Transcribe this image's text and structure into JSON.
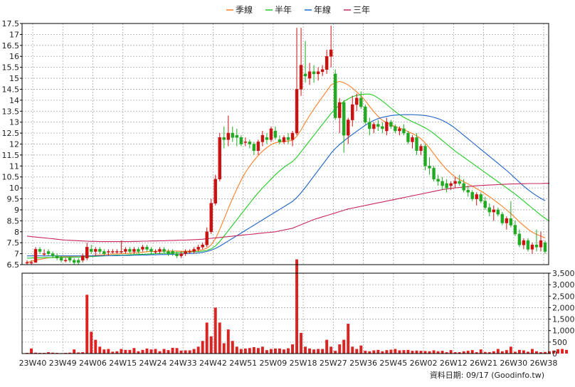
{
  "legend": [
    {
      "label": "季線",
      "color": "#ff7f27"
    },
    {
      "label": "半年",
      "color": "#22cc22"
    },
    {
      "label": "年線",
      "color": "#1e64c8"
    },
    {
      "label": "三年",
      "color": "#c8285a"
    }
  ],
  "footer": {
    "source": "資料日期: 09/17  (Goodinfo.tw)"
  },
  "colors": {
    "up": "#cc1111",
    "down": "#22aa22",
    "volume": "#dd2222",
    "grid": "#aaaaaa",
    "frame": "#000000"
  },
  "chart_data": {
    "type": "candlestick",
    "price_axis": {
      "min": 6.5,
      "max": 17.5,
      "ticks": [
        "6.5",
        "7",
        "7.5",
        "8",
        "8.5",
        "9",
        "9.5",
        "10",
        "10.5",
        "11",
        "11.5",
        "12",
        "12.5",
        "13",
        "13.5",
        "14",
        "14.5",
        "15",
        "15.5",
        "16",
        "16.5",
        "17",
        "17.5"
      ]
    },
    "volume_axis": {
      "min": 0,
      "max": 3500,
      "ticks": [
        "0",
        "500",
        "1,000",
        "1,500",
        "2,000",
        "2,500",
        "3,000",
        "3,500"
      ]
    },
    "x_labels": [
      "23W40",
      "23W49",
      "24W06",
      "24W15",
      "24W24",
      "24W33",
      "24W42",
      "24W51",
      "25W09",
      "25W18",
      "25W27",
      "25W36",
      "25W45",
      "26W02",
      "26W12",
      "26W21",
      "26W30",
      "26W38"
    ],
    "grid": true,
    "legend_position": "top-center",
    "candles": [
      [
        6.6,
        6.7,
        6.5,
        6.6
      ],
      [
        6.6,
        6.7,
        6.5,
        6.6
      ],
      [
        6.6,
        7.3,
        6.6,
        7.2
      ],
      [
        7.2,
        7.3,
        7.0,
        7.1
      ],
      [
        7.0,
        7.2,
        6.9,
        7.0
      ],
      [
        7.1,
        7.2,
        6.9,
        7.0
      ],
      [
        7.0,
        7.1,
        6.8,
        6.9
      ],
      [
        6.9,
        7.0,
        6.7,
        6.8
      ],
      [
        6.8,
        6.9,
        6.6,
        6.7
      ],
      [
        6.7,
        6.8,
        6.6,
        6.7
      ],
      [
        6.8,
        6.9,
        6.6,
        6.7
      ],
      [
        6.7,
        6.8,
        6.5,
        6.6
      ],
      [
        6.7,
        6.8,
        6.5,
        6.6
      ],
      [
        6.7,
        7.0,
        6.6,
        6.9
      ],
      [
        6.8,
        7.5,
        6.7,
        7.3
      ],
      [
        7.2,
        7.4,
        7.0,
        7.1
      ],
      [
        7.1,
        7.3,
        6.9,
        7.2
      ],
      [
        7.2,
        7.3,
        7.0,
        7.1
      ],
      [
        7.1,
        7.2,
        6.9,
        7.0
      ],
      [
        7.1,
        7.2,
        6.9,
        7.1
      ],
      [
        7.1,
        7.2,
        7.0,
        7.1
      ],
      [
        7.1,
        7.2,
        7.0,
        7.1
      ],
      [
        7.1,
        7.6,
        7.0,
        7.1
      ],
      [
        7.1,
        7.3,
        7.0,
        7.2
      ],
      [
        7.2,
        7.3,
        7.0,
        7.1
      ],
      [
        7.1,
        7.3,
        7.0,
        7.2
      ],
      [
        7.2,
        7.3,
        7.0,
        7.1
      ],
      [
        7.2,
        7.4,
        7.1,
        7.3
      ],
      [
        7.3,
        7.4,
        7.1,
        7.2
      ],
      [
        7.2,
        7.3,
        7.0,
        7.1
      ],
      [
        7.1,
        7.2,
        7.0,
        7.1
      ],
      [
        7.1,
        7.3,
        7.0,
        7.2
      ],
      [
        7.2,
        7.3,
        7.0,
        7.1
      ],
      [
        7.1,
        7.2,
        6.9,
        7.0
      ],
      [
        7.1,
        7.2,
        6.9,
        7.0
      ],
      [
        7.0,
        7.1,
        6.8,
        6.9
      ],
      [
        6.9,
        7.1,
        6.8,
        7.0
      ],
      [
        7.0,
        7.2,
        6.9,
        7.1
      ],
      [
        7.1,
        7.2,
        7.0,
        7.1
      ],
      [
        7.1,
        7.3,
        7.0,
        7.2
      ],
      [
        7.2,
        7.4,
        7.1,
        7.3
      ],
      [
        7.3,
        7.5,
        7.2,
        7.4
      ],
      [
        7.4,
        8.2,
        7.3,
        8.0
      ],
      [
        8.0,
        9.5,
        7.9,
        9.3
      ],
      [
        9.3,
        10.6,
        9.2,
        10.4
      ],
      [
        10.4,
        12.5,
        10.3,
        12.3
      ],
      [
        12.3,
        12.8,
        11.8,
        12.2
      ],
      [
        12.2,
        13.3,
        11.9,
        12.5
      ],
      [
        12.5,
        12.8,
        12.1,
        12.3
      ],
      [
        12.4,
        12.7,
        11.9,
        12.3
      ],
      [
        12.3,
        12.4,
        11.9,
        12.0
      ],
      [
        12.1,
        12.3,
        11.9,
        12.1
      ],
      [
        12.1,
        12.2,
        11.8,
        12.0
      ],
      [
        12.0,
        12.1,
        11.5,
        11.7
      ],
      [
        11.7,
        12.2,
        11.5,
        12.1
      ],
      [
        12.1,
        12.6,
        11.9,
        12.4
      ],
      [
        12.3,
        12.5,
        12.0,
        12.2
      ],
      [
        12.2,
        12.8,
        12.1,
        12.7
      ],
      [
        12.6,
        12.8,
        12.2,
        12.3
      ],
      [
        12.2,
        12.4,
        12.0,
        12.1
      ],
      [
        12.1,
        12.4,
        12.0,
        12.3
      ],
      [
        12.3,
        12.5,
        12.0,
        12.2
      ],
      [
        12.2,
        12.6,
        11.9,
        12.5
      ],
      [
        12.5,
        17.3,
        12.4,
        14.5
      ],
      [
        14.5,
        17.3,
        14.2,
        15.6
      ],
      [
        15.2,
        16.7,
        14.8,
        15.1
      ],
      [
        15.0,
        15.7,
        14.7,
        15.3
      ],
      [
        15.3,
        15.6,
        14.8,
        15.2
      ],
      [
        15.2,
        15.5,
        14.9,
        15.3
      ],
      [
        15.3,
        15.6,
        15.1,
        15.4
      ],
      [
        15.4,
        16.3,
        15.2,
        16.0
      ],
      [
        16.0,
        17.4,
        15.5,
        16.3
      ],
      [
        15.2,
        15.4,
        13.1,
        13.2
      ],
      [
        13.2,
        14.1,
        12.5,
        13.9
      ],
      [
        13.9,
        14.0,
        11.6,
        12.4
      ],
      [
        12.4,
        13.2,
        12.0,
        13.1
      ],
      [
        13.1,
        14.2,
        12.8,
        13.8
      ],
      [
        13.8,
        14.3,
        13.5,
        14.1
      ],
      [
        14.1,
        14.4,
        13.6,
        13.7
      ],
      [
        13.7,
        13.8,
        12.9,
        13.0
      ],
      [
        13.0,
        13.2,
        12.4,
        12.7
      ],
      [
        12.7,
        13.0,
        12.5,
        12.9
      ],
      [
        12.9,
        13.1,
        12.6,
        12.8
      ],
      [
        12.8,
        13.0,
        12.5,
        12.7
      ],
      [
        12.6,
        13.2,
        12.4,
        13.0
      ],
      [
        13.0,
        13.1,
        12.7,
        12.8
      ],
      [
        12.8,
        12.9,
        12.5,
        12.6
      ],
      [
        12.6,
        12.8,
        12.4,
        12.7
      ],
      [
        12.7,
        12.9,
        12.4,
        12.5
      ],
      [
        12.5,
        12.6,
        12.0,
        12.1
      ],
      [
        12.1,
        12.4,
        11.8,
        12.3
      ],
      [
        12.3,
        12.5,
        11.5,
        11.7
      ],
      [
        11.7,
        12.0,
        11.5,
        11.9
      ],
      [
        11.9,
        12.0,
        10.8,
        11.0
      ],
      [
        11.0,
        11.4,
        10.6,
        10.9
      ],
      [
        10.9,
        11.0,
        10.3,
        10.4
      ],
      [
        10.4,
        10.6,
        10.1,
        10.3
      ],
      [
        10.3,
        10.5,
        9.9,
        10.1
      ],
      [
        10.2,
        10.4,
        9.8,
        10.0
      ],
      [
        10.1,
        10.3,
        9.9,
        10.2
      ],
      [
        10.2,
        10.5,
        10.0,
        10.3
      ],
      [
        10.3,
        10.6,
        10.1,
        10.2
      ],
      [
        10.2,
        10.4,
        9.8,
        9.9
      ],
      [
        9.9,
        10.1,
        9.6,
        9.8
      ],
      [
        9.8,
        9.9,
        9.4,
        9.5
      ],
      [
        9.5,
        9.8,
        9.2,
        9.7
      ],
      [
        9.7,
        9.8,
        9.3,
        9.4
      ],
      [
        9.4,
        9.6,
        9.0,
        9.1
      ],
      [
        9.1,
        9.3,
        8.7,
        8.9
      ],
      [
        8.9,
        9.2,
        8.5,
        9.0
      ],
      [
        9.0,
        9.1,
        8.7,
        8.8
      ],
      [
        8.8,
        8.9,
        8.3,
        8.4
      ],
      [
        8.4,
        8.7,
        8.1,
        8.6
      ],
      [
        8.6,
        9.4,
        8.2,
        8.3
      ],
      [
        8.3,
        8.5,
        7.8,
        7.9
      ],
      [
        7.9,
        8.1,
        7.3,
        7.4
      ],
      [
        7.4,
        7.7,
        7.2,
        7.6
      ],
      [
        7.6,
        7.7,
        7.1,
        7.2
      ],
      [
        7.2,
        7.5,
        7.0,
        7.4
      ],
      [
        7.4,
        8.1,
        7.1,
        7.3
      ],
      [
        7.3,
        8.0,
        7.1,
        7.6
      ],
      [
        7.5,
        7.6,
        7.0,
        7.1
      ]
    ],
    "series": [
      {
        "name": "季線",
        "values": [
          6.6,
          6.65,
          6.7,
          6.74,
          6.78,
          6.81,
          6.83,
          6.84,
          6.86,
          6.86,
          6.86,
          6.86,
          6.85,
          6.86,
          6.88,
          6.9,
          6.92,
          6.94,
          6.95,
          6.97,
          6.98,
          6.99,
          7.0,
          7.01,
          7.02,
          7.04,
          7.05,
          7.07,
          7.09,
          7.1,
          7.11,
          7.12,
          7.12,
          7.12,
          7.12,
          7.12,
          7.11,
          7.11,
          7.12,
          7.13,
          7.15,
          7.18,
          7.25,
          7.4,
          7.68,
          8.1,
          8.58,
          9.06,
          9.52,
          9.95,
          10.35,
          10.7,
          11.0,
          11.25,
          11.48,
          11.68,
          11.84,
          11.97,
          12.06,
          12.1,
          12.12,
          12.14,
          12.17,
          12.35,
          12.65,
          12.98,
          13.3,
          13.6,
          13.88,
          14.15,
          14.42,
          14.7,
          14.8,
          14.86,
          14.8,
          14.7,
          14.55,
          14.38,
          14.2,
          13.98,
          13.72,
          13.48,
          13.26,
          13.08,
          12.98,
          12.88,
          12.8,
          12.73,
          12.66,
          12.57,
          12.48,
          12.38,
          12.24,
          12.05,
          11.82,
          11.56,
          11.3,
          11.06,
          10.84,
          10.66,
          10.5,
          10.38,
          10.28,
          10.18,
          10.08,
          9.97,
          9.86,
          9.73,
          9.6,
          9.46,
          9.31,
          9.16,
          9.0,
          8.83,
          8.64,
          8.45,
          8.28,
          8.12,
          7.98,
          7.88,
          7.8,
          7.72
        ]
      },
      {
        "name": "半年",
        "values": [
          6.8,
          6.8,
          6.81,
          6.81,
          6.82,
          6.82,
          6.82,
          6.83,
          6.83,
          6.83,
          6.83,
          6.84,
          6.84,
          6.85,
          6.86,
          6.87,
          6.88,
          6.89,
          6.9,
          6.91,
          6.92,
          6.93,
          6.93,
          6.94,
          6.95,
          6.96,
          6.97,
          6.97,
          6.98,
          6.99,
          7.0,
          7.01,
          7.02,
          7.03,
          7.04,
          7.05,
          7.06,
          7.07,
          7.08,
          7.09,
          7.1,
          7.12,
          7.15,
          7.22,
          7.35,
          7.55,
          7.8,
          8.05,
          8.3,
          8.55,
          8.8,
          9.05,
          9.3,
          9.55,
          9.78,
          10.0,
          10.2,
          10.4,
          10.6,
          10.78,
          10.94,
          11.08,
          11.2,
          11.4,
          11.65,
          11.9,
          12.15,
          12.4,
          12.65,
          12.9,
          13.15,
          13.4,
          13.6,
          13.78,
          13.94,
          14.06,
          14.16,
          14.22,
          14.26,
          14.28,
          14.28,
          14.22,
          14.1,
          13.96,
          13.8,
          13.64,
          13.48,
          13.34,
          13.22,
          13.12,
          13.02,
          12.93,
          12.84,
          12.74,
          12.62,
          12.48,
          12.32,
          12.16,
          12.0,
          11.84,
          11.68,
          11.54,
          11.4,
          11.26,
          11.12,
          10.98,
          10.84,
          10.7,
          10.56,
          10.42,
          10.28,
          10.14,
          10.0,
          9.86,
          9.72,
          9.56,
          9.4,
          9.24,
          9.08,
          8.92,
          8.76,
          8.62,
          8.48
        ]
      },
      {
        "name": "年線",
        "values": [
          6.9,
          6.9,
          6.9,
          6.9,
          6.9,
          6.9,
          6.9,
          6.9,
          6.9,
          6.9,
          6.9,
          6.9,
          6.9,
          6.9,
          6.9,
          6.9,
          6.9,
          6.9,
          6.91,
          6.91,
          6.91,
          6.91,
          6.92,
          6.92,
          6.92,
          6.93,
          6.93,
          6.94,
          6.94,
          6.95,
          6.95,
          6.96,
          6.96,
          6.97,
          6.97,
          6.98,
          6.99,
          7.0,
          7.01,
          7.02,
          7.04,
          7.06,
          7.1,
          7.16,
          7.24,
          7.34,
          7.46,
          7.58,
          7.7,
          7.82,
          7.94,
          8.06,
          8.18,
          8.3,
          8.42,
          8.54,
          8.66,
          8.78,
          8.9,
          9.02,
          9.14,
          9.26,
          9.38,
          9.56,
          9.78,
          10.02,
          10.28,
          10.54,
          10.8,
          11.06,
          11.32,
          11.58,
          11.8,
          11.98,
          12.14,
          12.3,
          12.44,
          12.58,
          12.72,
          12.86,
          12.98,
          13.08,
          13.16,
          13.22,
          13.26,
          13.3,
          13.32,
          13.33,
          13.34,
          13.34,
          13.34,
          13.33,
          13.32,
          13.3,
          13.27,
          13.22,
          13.16,
          13.08,
          12.98,
          12.86,
          12.72,
          12.56,
          12.4,
          12.24,
          12.08,
          11.92,
          11.76,
          11.6,
          11.44,
          11.28,
          11.12,
          10.96,
          10.8,
          10.62,
          10.44,
          10.26,
          10.08,
          9.92,
          9.78,
          9.64,
          9.52,
          9.42
        ]
      },
      {
        "name": "三年",
        "values": [
          7.8,
          7.78,
          7.76,
          7.74,
          7.72,
          7.7,
          7.68,
          7.66,
          7.64,
          7.62,
          7.61,
          7.6,
          7.59,
          7.58,
          7.57,
          7.56,
          7.56,
          7.55,
          7.55,
          7.55,
          7.55,
          7.55,
          7.55,
          7.55,
          7.55,
          7.56,
          7.56,
          7.57,
          7.57,
          7.58,
          7.58,
          7.59,
          7.59,
          7.6,
          7.6,
          7.61,
          7.62,
          7.62,
          7.63,
          7.64,
          7.65,
          7.66,
          7.68,
          7.7,
          7.72,
          7.74,
          7.76,
          7.78,
          7.8,
          7.82,
          7.84,
          7.86,
          7.88,
          7.9,
          7.92,
          7.94,
          7.96,
          7.98,
          8.0,
          8.04,
          8.08,
          8.12,
          8.16,
          8.24,
          8.32,
          8.4,
          8.48,
          8.56,
          8.62,
          8.68,
          8.74,
          8.8,
          8.86,
          8.92,
          8.98,
          9.04,
          9.08,
          9.12,
          9.16,
          9.2,
          9.24,
          9.28,
          9.32,
          9.36,
          9.4,
          9.44,
          9.48,
          9.52,
          9.56,
          9.6,
          9.64,
          9.68,
          9.72,
          9.76,
          9.8,
          9.84,
          9.88,
          9.92,
          9.95,
          9.98,
          10.0,
          10.02,
          10.04,
          10.06,
          10.08,
          10.1,
          10.11,
          10.12,
          10.13,
          10.14,
          10.15,
          10.16,
          10.17,
          10.18,
          10.18,
          10.19,
          10.19,
          10.2,
          10.2,
          10.2,
          10.2,
          10.21,
          10.21
        ]
      }
    ],
    "volume": [
      30,
      220,
      40,
      30,
      30,
      60,
      40,
      30,
      20,
      30,
      40,
      180,
      50,
      60,
      2560,
      950,
      600,
      300,
      180,
      200,
      80,
      100,
      200,
      160,
      160,
      240,
      100,
      160,
      220,
      180,
      200,
      100,
      200,
      150,
      250,
      240,
      130,
      140,
      140,
      200,
      300,
      550,
      1350,
      750,
      2000,
      1350,
      450,
      1050,
      550,
      300,
      200,
      220,
      240,
      280,
      240,
      300,
      150,
      200,
      220,
      220,
      180,
      230,
      400,
      4100,
      900,
      300,
      220,
      180,
      200,
      200,
      600,
      300,
      120,
      400,
      600,
      1300,
      300,
      200,
      350,
      120,
      100,
      140,
      160,
      100,
      150,
      170,
      200,
      140,
      150,
      160,
      120,
      130,
      120,
      110,
      100,
      140,
      100,
      120,
      60,
      150,
      60,
      60,
      100,
      120,
      150,
      60,
      180,
      70,
      60,
      100,
      200,
      100,
      150,
      300,
      80,
      160,
      140,
      80,
      200,
      100,
      60,
      70,
      100,
      130,
      190,
      200,
      160
    ]
  }
}
